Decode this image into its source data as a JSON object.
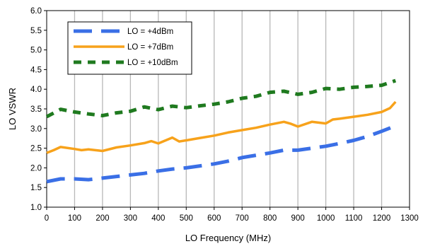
{
  "chart_data": {
    "type": "line",
    "title": "",
    "xlabel": "LO Frequency (MHz)",
    "ylabel": "LO VSWR",
    "xlim": [
      0,
      1300
    ],
    "ylim": [
      1.0,
      6.0
    ],
    "x_ticks": [
      0,
      100,
      200,
      300,
      400,
      500,
      600,
      700,
      800,
      900,
      1000,
      1100,
      1200,
      1300
    ],
    "y_ticks": [
      1.0,
      1.5,
      2.0,
      2.5,
      3.0,
      3.5,
      4.0,
      4.5,
      5.0,
      5.5,
      6.0
    ],
    "x_tick_labels": [
      "0",
      "100",
      "200",
      "300",
      "400",
      "500",
      "600",
      "700",
      "800",
      "900",
      "1000",
      "1100",
      "1200",
      "1300"
    ],
    "y_tick_labels": [
      "1.0",
      "1.5",
      "2.0",
      "2.5",
      "3.0",
      "3.5",
      "4.0",
      "4.5",
      "5.0",
      "5.5",
      "6.0"
    ],
    "grid": "vertical",
    "legend_position": "top-left",
    "series": [
      {
        "name": "LO = +4dBm",
        "color": "#3a6fe6",
        "dash": "long-dash",
        "x": [
          0,
          50,
          100,
          150,
          200,
          250,
          300,
          350,
          400,
          450,
          500,
          550,
          600,
          650,
          700,
          750,
          800,
          850,
          900,
          950,
          1000,
          1050,
          1100,
          1150,
          1200,
          1250
        ],
        "y": [
          1.65,
          1.72,
          1.72,
          1.7,
          1.74,
          1.78,
          1.82,
          1.86,
          1.92,
          1.97,
          2.0,
          2.05,
          2.1,
          2.17,
          2.26,
          2.32,
          2.38,
          2.45,
          2.45,
          2.5,
          2.55,
          2.62,
          2.7,
          2.8,
          2.93,
          3.07
        ]
      },
      {
        "name": "LO = +7dBm",
        "color": "#f7a21b",
        "dash": "solid",
        "x": [
          0,
          25,
          50,
          100,
          125,
          150,
          200,
          250,
          300,
          350,
          375,
          400,
          450,
          475,
          500,
          550,
          600,
          650,
          700,
          750,
          800,
          850,
          875,
          900,
          950,
          1000,
          1025,
          1050,
          1100,
          1150,
          1200,
          1230,
          1250
        ],
        "y": [
          2.38,
          2.45,
          2.53,
          2.48,
          2.45,
          2.47,
          2.43,
          2.52,
          2.57,
          2.63,
          2.68,
          2.62,
          2.77,
          2.67,
          2.7,
          2.76,
          2.82,
          2.9,
          2.96,
          3.02,
          3.1,
          3.17,
          3.12,
          3.05,
          3.17,
          3.13,
          3.23,
          3.25,
          3.3,
          3.35,
          3.42,
          3.52,
          3.68
        ]
      },
      {
        "name": "LO = +10dBm",
        "color": "#1f7a1f",
        "dash": "short-dash",
        "x": [
          0,
          50,
          100,
          150,
          200,
          250,
          300,
          350,
          400,
          450,
          500,
          550,
          600,
          650,
          700,
          750,
          800,
          850,
          900,
          950,
          1000,
          1050,
          1100,
          1150,
          1200,
          1250
        ],
        "y": [
          3.3,
          3.49,
          3.42,
          3.37,
          3.33,
          3.4,
          3.44,
          3.55,
          3.48,
          3.57,
          3.53,
          3.58,
          3.62,
          3.68,
          3.77,
          3.82,
          3.92,
          3.95,
          3.87,
          3.92,
          4.02,
          4.0,
          4.05,
          4.07,
          4.1,
          4.22
        ]
      }
    ]
  }
}
